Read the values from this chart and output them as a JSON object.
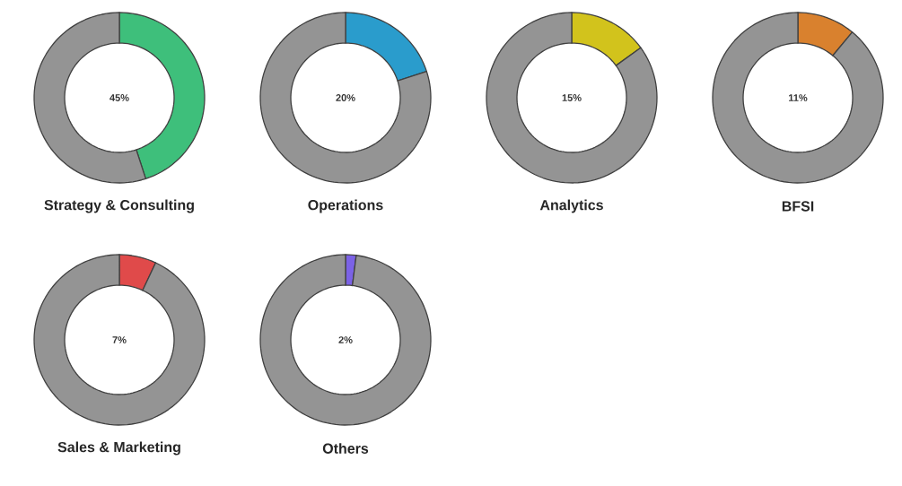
{
  "chart_data": [
    {
      "type": "donut",
      "title": "Strategy & Consulting",
      "categories": [
        null,
        null
      ],
      "values": [
        45,
        55
      ],
      "colors": [
        "#3ebf7b",
        "#949494"
      ],
      "annotations": [
        "45%"
      ]
    },
    {
      "type": "donut",
      "title": "Operations",
      "categories": [
        null,
        null
      ],
      "values": [
        20,
        80
      ],
      "colors": [
        "#2a9ccc",
        "#949494"
      ],
      "annotations": [
        "20%"
      ]
    },
    {
      "type": "donut",
      "title": "Analytics",
      "categories": [
        null,
        null
      ],
      "values": [
        15,
        85
      ],
      "colors": [
        "#d2c31c",
        "#949494"
      ],
      "annotations": [
        "15%"
      ]
    },
    {
      "type": "donut",
      "title": "BFSI",
      "categories": [
        null,
        null
      ],
      "values": [
        11,
        89
      ],
      "colors": [
        "#d9812e",
        "#949494"
      ],
      "annotations": [
        "11%"
      ]
    },
    {
      "type": "donut",
      "title": "Sales & Marketing",
      "categories": [
        null,
        null
      ],
      "values": [
        7,
        93
      ],
      "colors": [
        "#e04a4a",
        "#949494"
      ],
      "annotations": [
        "7%"
      ]
    },
    {
      "type": "donut",
      "title": "Others",
      "categories": [
        null,
        null
      ],
      "values": [
        2,
        98
      ],
      "colors": [
        "#7b62e6",
        "#949494"
      ],
      "annotations": [
        "2%"
      ]
    }
  ]
}
